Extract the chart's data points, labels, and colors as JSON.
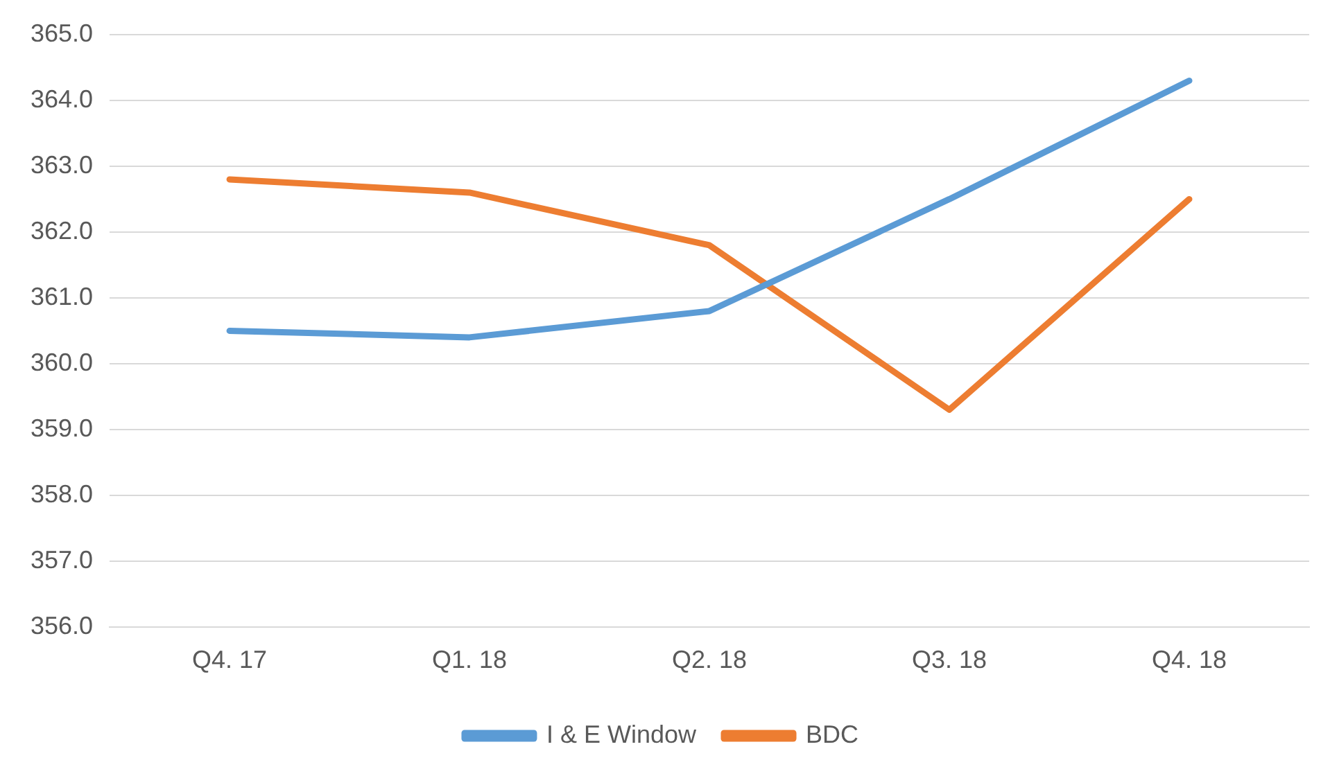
{
  "chart_data": {
    "type": "line",
    "categories": [
      "Q4. 17",
      "Q1. 18",
      "Q2. 18",
      "Q3. 18",
      "Q4. 18"
    ],
    "series": [
      {
        "name": "I & E Window",
        "color": "#5b9bd5",
        "values": [
          360.5,
          360.4,
          360.8,
          362.5,
          364.3
        ]
      },
      {
        "name": "BDC",
        "color": "#ed7d31",
        "values": [
          362.8,
          362.6,
          361.8,
          359.3,
          362.5
        ]
      }
    ],
    "ylim": [
      356,
      365
    ],
    "yticks": [
      {
        "value": 356,
        "label": "356.0"
      },
      {
        "value": 357,
        "label": "357.0"
      },
      {
        "value": 358,
        "label": "358.0"
      },
      {
        "value": 359,
        "label": "359.0"
      },
      {
        "value": 360,
        "label": "360.0"
      },
      {
        "value": 361,
        "label": "361.0"
      },
      {
        "value": 362,
        "label": "362.0"
      },
      {
        "value": 363,
        "label": "363.0"
      },
      {
        "value": 364,
        "label": "364.0"
      },
      {
        "value": 365,
        "label": "365.0"
      }
    ],
    "grid": "y",
    "legend": "bottom",
    "marker": "none",
    "line_style": "solid"
  }
}
